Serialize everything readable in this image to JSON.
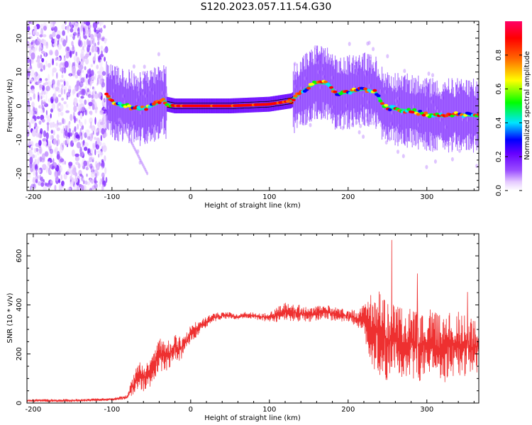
{
  "title": "S120.2023.057.11.54.G30",
  "colors": {
    "snr_line": "#ee3030",
    "colormap": [
      "#ffffff",
      "#e6ccff",
      "#9a4dff",
      "#6600ff",
      "#0000ff",
      "#00e5ff",
      "#00ff00",
      "#ffff00",
      "#ff6600",
      "#ff0000",
      "#ff0066"
    ]
  },
  "chart_data": [
    {
      "type": "heatmap",
      "title": "S120.2023.057.11.54.G30",
      "xlabel": "Height of straight line (km)",
      "ylabel": "Frequency (Hz)",
      "xlim": [
        -208,
        366
      ],
      "ylim": [
        -25,
        25
      ],
      "xticks": [
        -200,
        -100,
        0,
        100,
        200,
        300
      ],
      "yticks": [
        20,
        10,
        0,
        -10,
        -20
      ],
      "noise_region_x": [
        -208,
        -107
      ],
      "ridge": {
        "x": [
          -107,
          -95,
          -80,
          -65,
          -50,
          -40,
          -35,
          -30,
          -20,
          0,
          50,
          100,
          128,
          140,
          160,
          175,
          185,
          200,
          220,
          235,
          245,
          260,
          280,
          300,
          320,
          340,
          366
        ],
        "y": [
          3,
          0.5,
          0,
          -1,
          0,
          1,
          2,
          0.5,
          0,
          0,
          0,
          0.5,
          1.5,
          4,
          7,
          6.5,
          3.5,
          4,
          5,
          4,
          0,
          -1,
          -1.5,
          -2.5,
          -3,
          -2.5,
          -3
        ]
      },
      "colorbar": {
        "label": "Normalized spectral amplitude",
        "ticks": [
          0.0,
          0.2,
          0.4,
          0.6,
          0.8
        ],
        "range": [
          0.0,
          1.0
        ]
      }
    },
    {
      "type": "line",
      "xlabel": "Height of straight line (km)",
      "ylabel": "SNR (10 * v/v)",
      "xlim": [
        -208,
        366
      ],
      "ylim": [
        0,
        690
      ],
      "xticks": [
        -200,
        -100,
        0,
        100,
        200,
        300
      ],
      "yticks": [
        600,
        400,
        200,
        0
      ],
      "series": [
        {
          "x": [
            -208,
            -150,
            -100,
            -80,
            -75,
            -70,
            -65,
            -60,
            -50,
            -45,
            -40,
            -30,
            -20,
            -15,
            -10,
            0,
            10,
            20,
            30,
            40,
            50,
            60,
            70,
            80,
            90,
            100,
            110,
            120,
            130,
            140,
            150,
            160,
            170,
            180,
            190,
            200,
            210,
            220,
            230,
            240,
            250,
            260,
            270,
            280,
            290,
            300,
            310,
            320,
            330,
            340,
            350,
            366
          ],
          "y": [
            10,
            10,
            15,
            25,
            60,
            90,
            120,
            100,
            130,
            160,
            200,
            190,
            230,
            220,
            230,
            280,
            310,
            330,
            350,
            355,
            358,
            350,
            360,
            355,
            350,
            350,
            360,
            375,
            370,
            365,
            360,
            365,
            370,
            365,
            360,
            355,
            345,
            330,
            300,
            280,
            260,
            250,
            240,
            250,
            230,
            240,
            230,
            220,
            235,
            240,
            225,
            230
          ],
          "spread": [
            6,
            6,
            6,
            8,
            40,
            55,
            60,
            55,
            60,
            55,
            70,
            60,
            55,
            50,
            45,
            40,
            30,
            22,
            18,
            15,
            12,
            12,
            12,
            14,
            16,
            18,
            30,
            38,
            38,
            35,
            30,
            30,
            30,
            30,
            28,
            26,
            35,
            70,
            160,
            180,
            170,
            160,
            160,
            150,
            150,
            150,
            140,
            140,
            140,
            135,
            130,
            130
          ]
        }
      ]
    }
  ]
}
